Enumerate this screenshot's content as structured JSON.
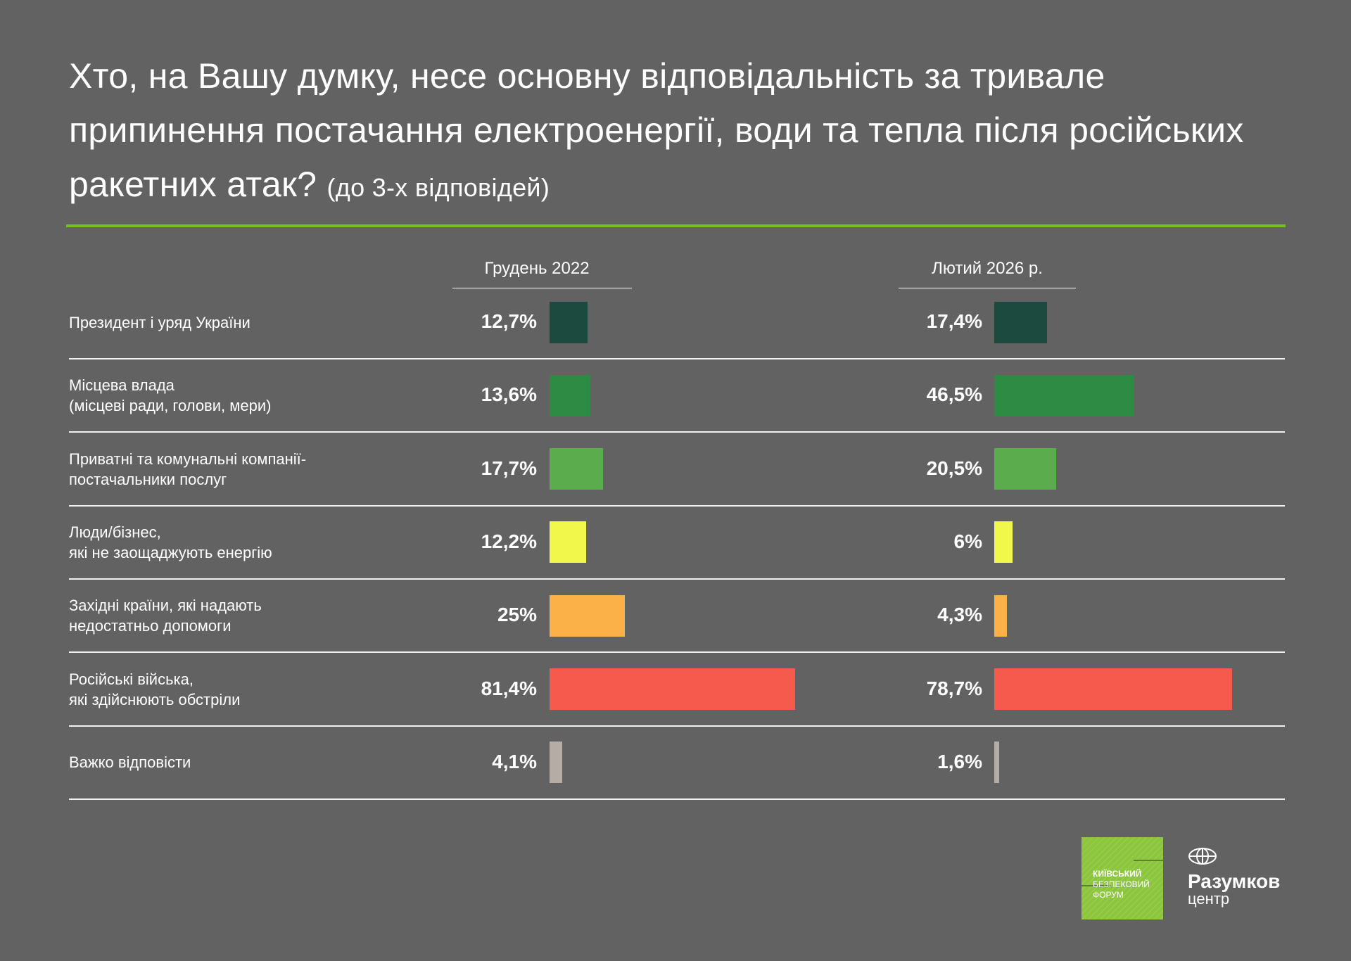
{
  "title": {
    "main": "Хто, на Вашу думку, несе основну відповідальність за тривале припинення постачання електроенергії, води та тепла після російських ракетних атак?",
    "note": "(до 3-х відповідей)"
  },
  "chart_data": {
    "type": "bar",
    "orientation": "horizontal",
    "unit": "%",
    "columns": [
      "Грудень 2022",
      "Лютий 2026 р."
    ],
    "categories": [
      "Президент і уряд України",
      "Місцева влада\n(місцеві ради, голови, мери)",
      "Приватні та комунальні компанії-\nпостачальники послуг",
      "Люди/бізнес,\nякі не заощаджують енергію",
      "Західні країни, які надають\nнедостатньо допомоги",
      "Російські війська,\nякі здійснюють обстріли",
      "Важко відповісти"
    ],
    "series": [
      {
        "name": "Грудень 2022",
        "values": [
          12.7,
          13.6,
          17.7,
          12.2,
          25,
          81.4,
          4.1
        ],
        "labels": [
          "12,7%",
          "13,6%",
          "17,7%",
          "12,2%",
          "25%",
          "81,4%",
          "4,1%"
        ]
      },
      {
        "name": "Лютий 2026 р.",
        "values": [
          17.4,
          46.5,
          20.5,
          6,
          4.3,
          78.7,
          1.6
        ],
        "labels": [
          "17,4%",
          "46,5%",
          "20,5%",
          "6%",
          "4,3%",
          "78,7%",
          "1,6%"
        ]
      }
    ],
    "colors": [
      "#1c4a3f",
      "#2e8b44",
      "#5aac4c",
      "#f2f74c",
      "#fbb148",
      "#f65a4c",
      "#b5ada5"
    ]
  },
  "logos": {
    "kbf": "КИЇВСЬКИЙ БЕЗПЕКОВИЙ ФОРУМ",
    "razumkov_name": "Разумков",
    "razumkov_sub": "центр"
  }
}
